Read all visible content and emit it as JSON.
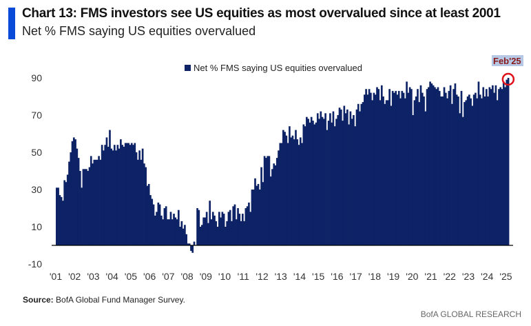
{
  "header": {
    "title": "Chart 13: FMS investors see US equities as most overvalued since at least 2001",
    "subtitle": "Net % FMS saying US equities overvalued"
  },
  "footer": {
    "source_label": "Source:",
    "source_text": "BofA Global Fund Manager Survey.",
    "brand": "BofA GLOBAL RESEARCH"
  },
  "colors": {
    "bar": "#0d2366",
    "accent": "#0a4ad8",
    "annotation_circle": "#e0101a",
    "annotation_text": "#8b1a1a",
    "annotation_bg": "#b6c8e4"
  },
  "chart_data": {
    "type": "bar",
    "title": "Chart 13: FMS investors see US equities as most overvalued since at least 2001",
    "subtitle": "Net % FMS saying US equities overvalued",
    "xlabel": "",
    "ylabel": "",
    "ylim": [
      -10,
      95
    ],
    "yticks": [
      -10,
      10,
      30,
      50,
      70,
      90
    ],
    "ytick_labels": [
      "-10",
      "10",
      "30",
      "50",
      "70",
      "90"
    ],
    "xtick_labels": [
      "'01",
      "'02",
      "'03",
      "'04",
      "'05",
      "'06",
      "'07",
      "'08",
      "'09",
      "'10",
      "'11",
      "'12",
      "'13",
      "'14",
      "'15",
      "'16",
      "'17",
      "'18",
      "'19",
      "'20",
      "'21",
      "'22",
      "'23",
      "'24",
      "'25"
    ],
    "start": "2001-01",
    "end": "2025-02",
    "frequency": "monthly",
    "legend": {
      "label": "Net % FMS saying US equities overvalued",
      "position": "top-center"
    },
    "annotation": {
      "label": "Feb'25",
      "target": "2025-02"
    },
    "grid": false,
    "series": [
      {
        "name": "Net % FMS saying US equities overvalued",
        "values": [
          31,
          31,
          27,
          26,
          24,
          35,
          34,
          38,
          45,
          50,
          56,
          58,
          57,
          52,
          47,
          40,
          31,
          41,
          41,
          41,
          40,
          42,
          48,
          44,
          46,
          46,
          46,
          48,
          46,
          54,
          51,
          54,
          58,
          53,
          62,
          52,
          51,
          54,
          51,
          54,
          52,
          57,
          54,
          53,
          55,
          55,
          55,
          54,
          55,
          54,
          55,
          50,
          46,
          51,
          46,
          52,
          44,
          42,
          32,
          33,
          27,
          25,
          22,
          16,
          18,
          23,
          22,
          16,
          14,
          20,
          21,
          14,
          14,
          18,
          14,
          17,
          15,
          14,
          19,
          10,
          13,
          9,
          11,
          6,
          1,
          1,
          -3,
          -4,
          2,
          0,
          20,
          19,
          10,
          11,
          15,
          15,
          18,
          12,
          24,
          14,
          18,
          16,
          13,
          10,
          18,
          15,
          18,
          17,
          10,
          13,
          18,
          19,
          13,
          21,
          22,
          14,
          20,
          17,
          13,
          17,
          13,
          20,
          21,
          23,
          18,
          30,
          30,
          36,
          32,
          33,
          30,
          42,
          34,
          48,
          47,
          48,
          48,
          37,
          41,
          44,
          43,
          47,
          51,
          55,
          55,
          62,
          61,
          59,
          55,
          64,
          58,
          59,
          57,
          62,
          57,
          54,
          58,
          55,
          65,
          64,
          69,
          68,
          66,
          69,
          67,
          65,
          66,
          71,
          68,
          72,
          69,
          68,
          71,
          62,
          67,
          71,
          66,
          72,
          64,
          68,
          70,
          74,
          73,
          67,
          75,
          71,
          73,
          65,
          72,
          68,
          70,
          64,
          73,
          76,
          72,
          76,
          77,
          81,
          84,
          81,
          84,
          82,
          78,
          82,
          81,
          85,
          84,
          78,
          86,
          80,
          76,
          78,
          78,
          84,
          75,
          83,
          82,
          83,
          81,
          83,
          79,
          83,
          82,
          79,
          88,
          82,
          85,
          84,
          70,
          78,
          80,
          84,
          77,
          86,
          82,
          80,
          72,
          84,
          85,
          88,
          87,
          86,
          85,
          84,
          85,
          83,
          80,
          80,
          85,
          82,
          79,
          83,
          86,
          76,
          84,
          87,
          81,
          80,
          71,
          83,
          69,
          77,
          78,
          80,
          81,
          79,
          75,
          81,
          82,
          79,
          88,
          81,
          79,
          85,
          80,
          84,
          80,
          85,
          84,
          86,
          82,
          86,
          78,
          84,
          85,
          84,
          88,
          85,
          89,
          90
        ]
      }
    ]
  }
}
